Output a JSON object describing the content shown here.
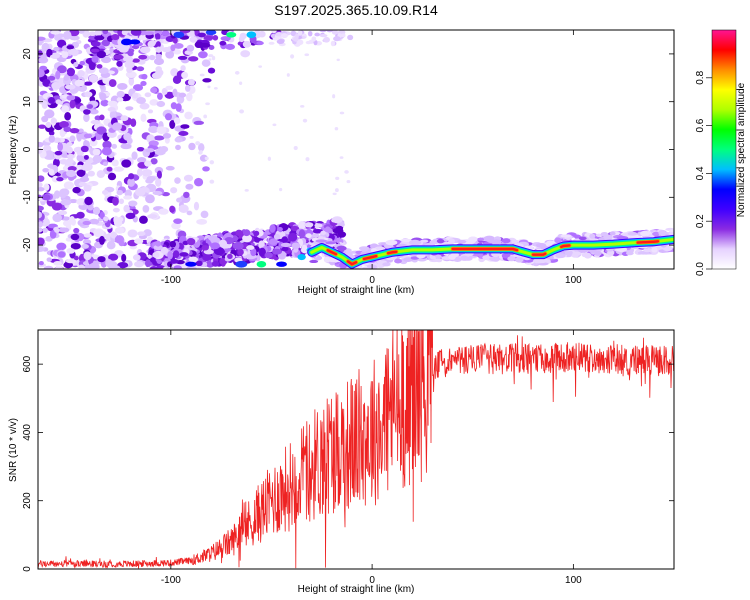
{
  "figure": {
    "title": "S197.2025.365.10.09.R14"
  },
  "chart_data": [
    {
      "type": "heatmap",
      "xlabel": "Height of straight line (km)",
      "ylabel": "Frequency (Hz)",
      "xlim": [
        -166,
        150
      ],
      "ylim": [
        -25,
        25
      ],
      "xticks": [
        -100,
        0,
        100
      ],
      "yticks": [
        -20,
        -10,
        0,
        10,
        20
      ],
      "colorbar": {
        "label": "Normalized spectral amplitude",
        "range": [
          0,
          1
        ],
        "ticks": [
          0.0,
          0.2,
          0.4,
          0.6,
          0.8
        ],
        "colors": [
          "#ffffff",
          "#e6d2ff",
          "#8a2be2",
          "#3f00ff",
          "#0000ff",
          "#00bfff",
          "#00ff7f",
          "#00ff00",
          "#b0ff00",
          "#ffff00",
          "#ff8c00",
          "#ff0000",
          "#ff1493"
        ]
      },
      "line_trace": {
        "x": [
          -30,
          -25,
          -20,
          -15,
          -10,
          -5,
          0,
          5,
          10,
          20,
          30,
          40,
          50,
          60,
          70,
          74,
          80,
          85,
          90,
          95,
          100,
          110,
          120,
          130,
          140,
          150
        ],
        "y": [
          -21.5,
          -20.5,
          -21.5,
          -22.5,
          -24,
          -23,
          -22.5,
          -22,
          -21.5,
          -21,
          -21,
          -20.8,
          -20.8,
          -20.8,
          -20.8,
          -21.3,
          -22,
          -22,
          -21,
          -20.2,
          -20,
          -20,
          -19.8,
          -19.5,
          -19.3,
          -18.8
        ]
      }
    },
    {
      "type": "line",
      "xlabel": "Height of straight line (km)",
      "ylabel": "SNR (10 * v/v)",
      "xlim": [
        -166,
        150
      ],
      "ylim": [
        0,
        700
      ],
      "xticks": [
        -100,
        0,
        100
      ],
      "yticks": [
        0,
        200,
        400,
        600
      ],
      "color": "#ee2222",
      "envelope": {
        "x": [
          -166,
          -120,
          -100,
          -90,
          -80,
          -70,
          -60,
          -50,
          -40,
          -30,
          -20,
          -10,
          0,
          10,
          20,
          30,
          40,
          50,
          60,
          80,
          100,
          120,
          140,
          150
        ],
        "y": [
          15,
          15,
          18,
          25,
          45,
          80,
          140,
          200,
          250,
          300,
          350,
          370,
          400,
          470,
          540,
          590,
          610,
          615,
          615,
          615,
          620,
          615,
          610,
          610
        ]
      }
    }
  ]
}
